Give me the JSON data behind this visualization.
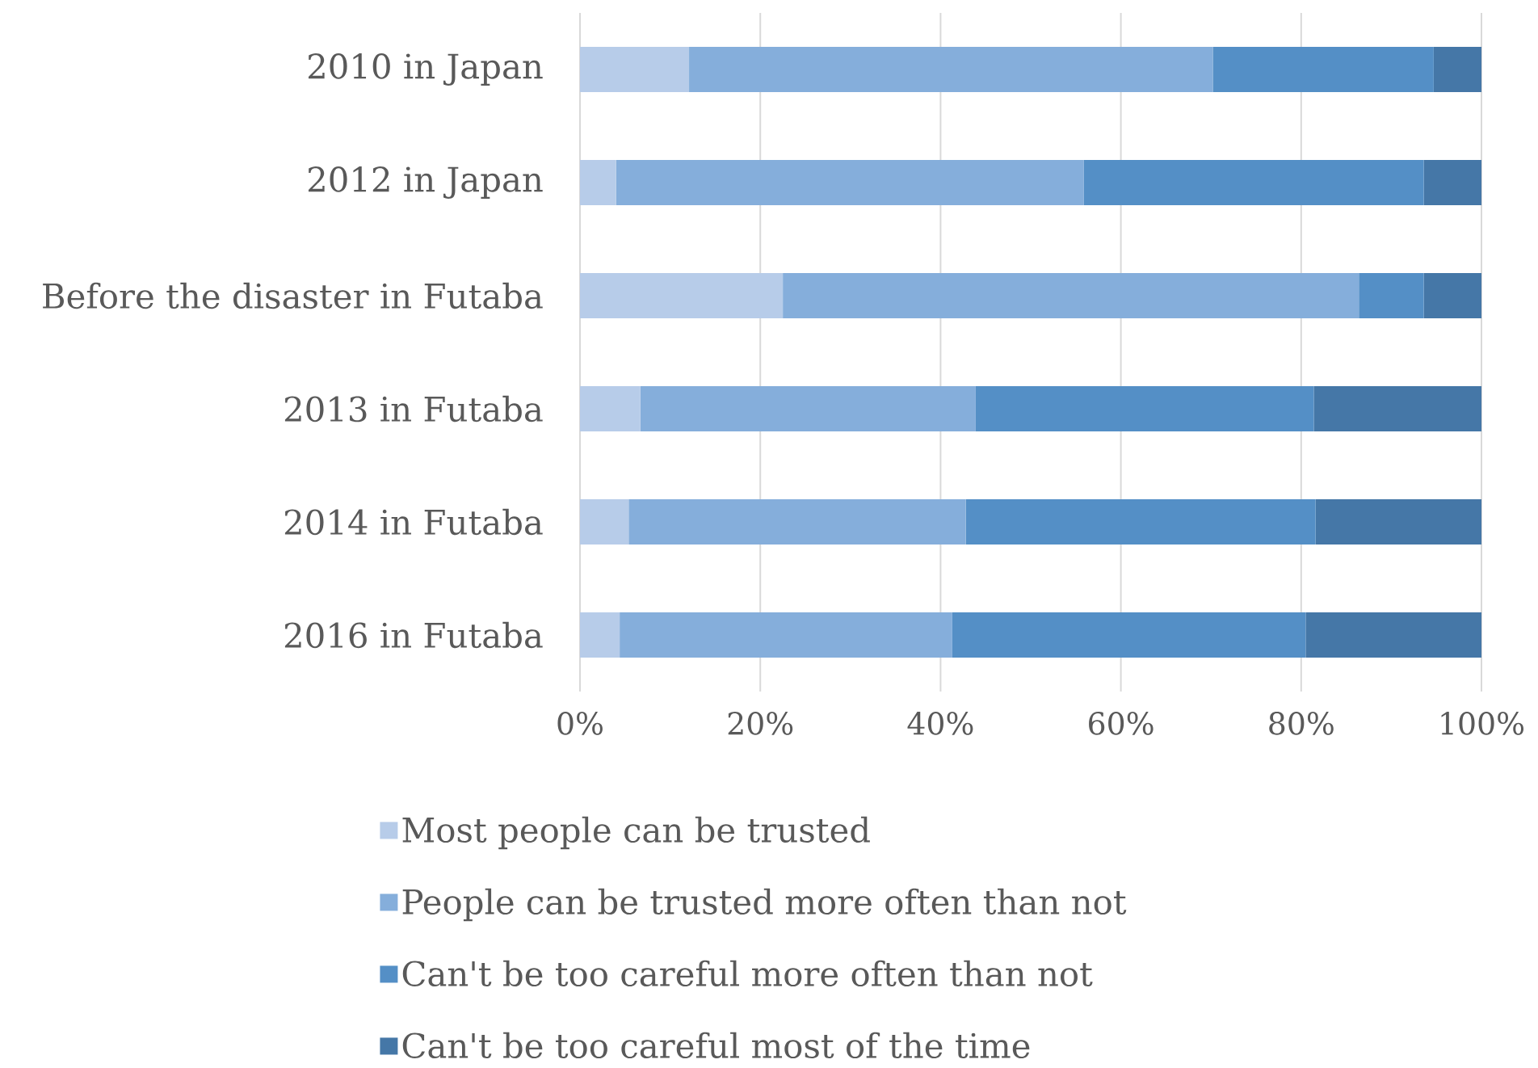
{
  "chart_data": {
    "type": "bar",
    "orientation": "horizontal",
    "stacked": true,
    "categories": [
      "2010 in Japan",
      "2012 in Japan",
      "Before the disaster in Futaba",
      "2013 in Futaba",
      "2014 in Futaba",
      "2016 in Futaba"
    ],
    "series": [
      {
        "name": "Most people can be trusted",
        "color": "#b7cce9",
        "values": [
          12.1,
          4.0,
          22.5,
          6.7,
          5.4,
          4.4
        ]
      },
      {
        "name": "People can be trusted  more  often than not",
        "color": "#85aedb",
        "values": [
          58.1,
          51.9,
          63.9,
          37.2,
          37.4,
          36.9
        ]
      },
      {
        "name": "Can't be too careful more often than not",
        "color": "#548fc6",
        "values": [
          24.5,
          37.7,
          7.2,
          37.5,
          38.8,
          39.2
        ]
      },
      {
        "name": "Can't be too careful most of the time",
        "color": "#4577a7",
        "values": [
          5.3,
          6.4,
          6.4,
          18.6,
          18.4,
          19.5
        ]
      }
    ],
    "xlim": [
      0,
      100
    ],
    "xticks": [
      {
        "value": 0,
        "label": "0%"
      },
      {
        "value": 20,
        "label": "20%"
      },
      {
        "value": 40,
        "label": "40%"
      },
      {
        "value": 60,
        "label": "60%"
      },
      {
        "value": 80,
        "label": "80%"
      },
      {
        "value": 100,
        "label": "100%"
      }
    ],
    "grid": "x",
    "legend": "bottom"
  }
}
